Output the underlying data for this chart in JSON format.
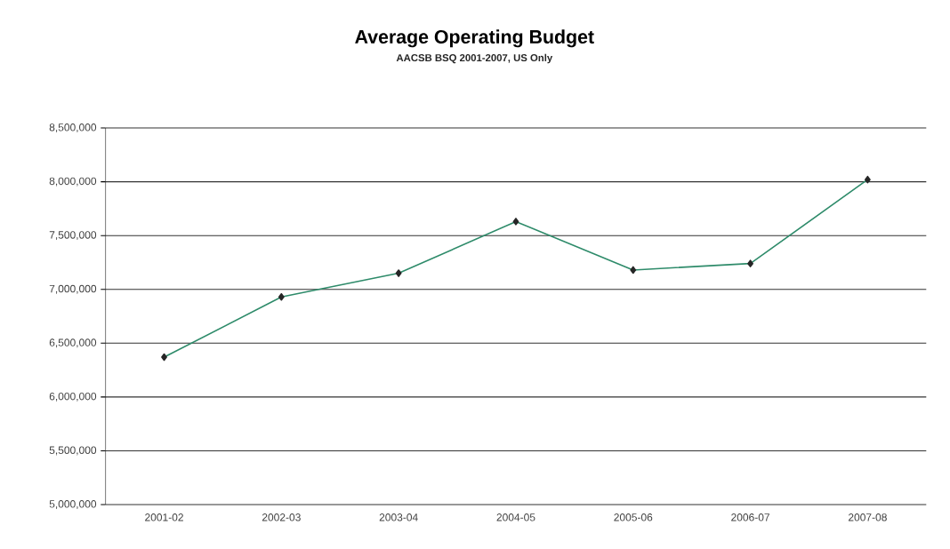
{
  "chart_data": {
    "type": "line",
    "title": "Average Operating Budget",
    "subtitle": "AACSB BSQ 2001-2007,  US Only",
    "categories": [
      "2001-02",
      "2002-03",
      "2003-04",
      "2004-05",
      "2005-06",
      "2006-07",
      "2007-08"
    ],
    "series": [
      {
        "color": "#2e8b6a",
        "values": [
          6370000,
          6930000,
          7150000,
          7630000,
          7180000,
          7240000,
          8020000
        ]
      }
    ],
    "ylim": [
      5000000,
      8500000
    ],
    "yticks": [
      {
        "value": 5000000,
        "label": "5,000,000"
      },
      {
        "value": 5500000,
        "label": "5,500,000"
      },
      {
        "value": 6000000,
        "label": "6,000,000"
      },
      {
        "value": 6500000,
        "label": "6,500,000"
      },
      {
        "value": 7000000,
        "label": "7,000,000"
      },
      {
        "value": 7500000,
        "label": "7,500,000"
      },
      {
        "value": 8000000,
        "label": "8,000,000"
      },
      {
        "value": 8500000,
        "label": "8,500,000"
      }
    ],
    "grid": "y",
    "marker": "diamond",
    "line_style": "solid"
  }
}
